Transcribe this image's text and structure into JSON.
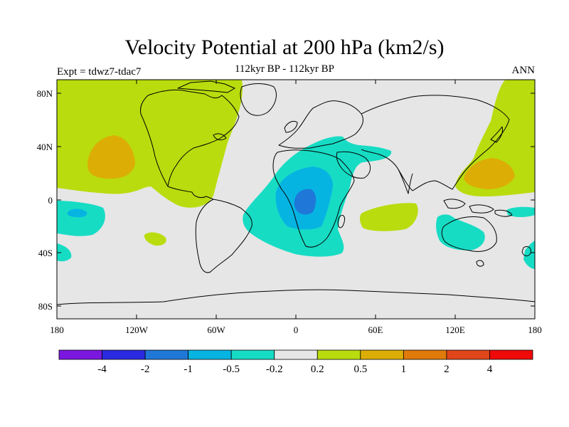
{
  "header": {
    "title": "Velocity Potential at 200 hPa (km2/s)",
    "subtitle": "112kyr BP - 112kyr BP",
    "experiment": "Expt = tdwz7-tdac7",
    "season": "ANN"
  },
  "axes": {
    "lat_labels": [
      "80N",
      "40N",
      "0",
      "40S",
      "80S"
    ],
    "lon_labels": [
      "180",
      "120W",
      "60W",
      "0",
      "60E",
      "120E",
      "180"
    ]
  },
  "colorbar": {
    "labels": [
      "-4",
      "-2",
      "-1",
      "-0.5",
      "-0.2",
      "0.2",
      "0.5",
      "1",
      "2",
      "4"
    ],
    "colors": [
      "#7b18e0",
      "#2a2ae0",
      "#1f78d8",
      "#06b4e2",
      "#17dcc4",
      "#e6e6e6",
      "#b9dc0e",
      "#dcae05",
      "#e07a0a",
      "#e0461a",
      "#f00a0a"
    ]
  },
  "field_colors": {
    "ocean": "#e6e6e6",
    "pos_05": "#b9dc0e",
    "pos_1": "#dcae05",
    "neg_02": "#17dcc4",
    "neg_05": "#06b4e2",
    "neg_1": "#1f78d8"
  }
}
